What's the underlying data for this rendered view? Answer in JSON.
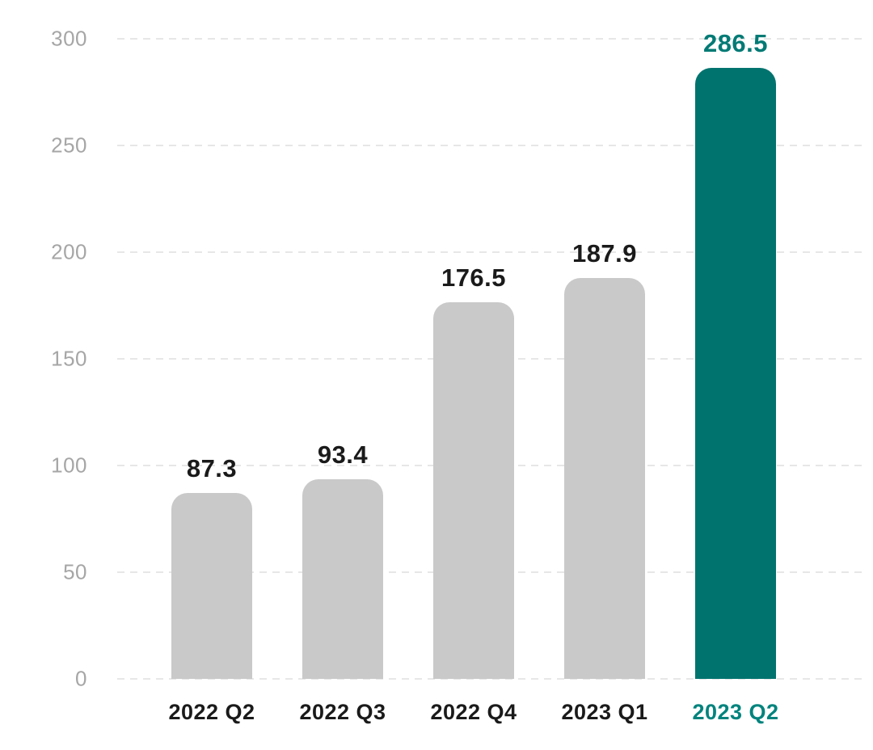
{
  "chart_data": {
    "type": "bar",
    "categories": [
      "2022 Q2",
      "2022 Q3",
      "2022 Q4",
      "2023 Q1",
      "2023 Q2"
    ],
    "values": [
      87.3,
      93.4,
      176.5,
      187.9,
      286.5
    ],
    "value_labels": [
      "87.3",
      "93.4",
      "176.5",
      "187.9",
      "286.5"
    ],
    "title": "",
    "xlabel": "",
    "ylabel": "",
    "ylim": [
      0,
      300
    ],
    "yticks": [
      0,
      50,
      100,
      150,
      200,
      250,
      300
    ],
    "ytick_labels": [
      "0",
      "50",
      "100",
      "150",
      "200",
      "250",
      "300"
    ],
    "grid": "horizontal-dashed",
    "legend": "none",
    "highlight_index": 4,
    "colors": {
      "bar": "#c9c9c9",
      "highlight_bar": "#00736e",
      "value_label": "#1a1a1a",
      "highlight_value_label": "#007a75",
      "category_label": "#1a1a1a",
      "highlight_category_label": "#00837d",
      "axis_tick_label": "#a6a6a6",
      "gridline": "#e7e7e7",
      "background": "#ffffff"
    }
  }
}
